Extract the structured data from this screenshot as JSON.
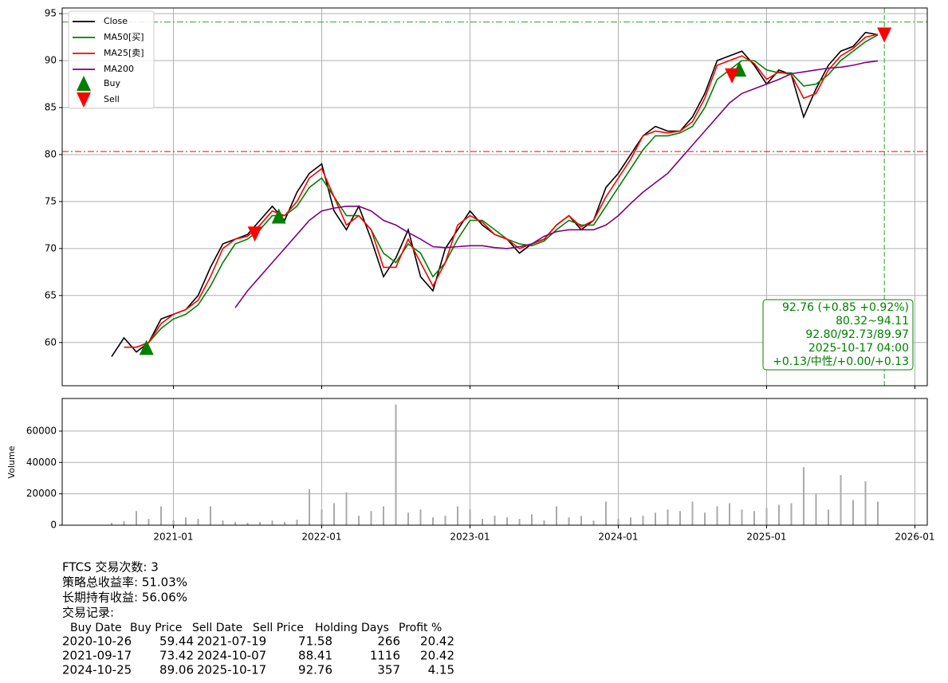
{
  "chart_data": [
    {
      "type": "line",
      "x": [
        "2020-08",
        "2020-09",
        "2020-10",
        "2020-11",
        "2020-12",
        "2021-01",
        "2021-02",
        "2021-03",
        "2021-04",
        "2021-05",
        "2021-06",
        "2021-07",
        "2021-08",
        "2021-09",
        "2021-10",
        "2021-11",
        "2021-12",
        "2022-01",
        "2022-02",
        "2022-03",
        "2022-04",
        "2022-05",
        "2022-06",
        "2022-07",
        "2022-08",
        "2022-09",
        "2022-10",
        "2022-11",
        "2022-12",
        "2023-01",
        "2023-02",
        "2023-03",
        "2023-04",
        "2023-05",
        "2023-06",
        "2023-07",
        "2023-08",
        "2023-09",
        "2023-10",
        "2023-11",
        "2023-12",
        "2024-01",
        "2024-02",
        "2024-03",
        "2024-04",
        "2024-05",
        "2024-06",
        "2024-07",
        "2024-08",
        "2024-09",
        "2024-10",
        "2024-11",
        "2024-12",
        "2025-01",
        "2025-02",
        "2025-03",
        "2025-04",
        "2025-05",
        "2025-06",
        "2025-07",
        "2025-08",
        "2025-09",
        "2025-10"
      ],
      "series": [
        {
          "name": "Close",
          "color": "#000000",
          "values": [
            58.5,
            60.5,
            59,
            60,
            62.5,
            63,
            63.5,
            65,
            68,
            70.5,
            71,
            71.5,
            73,
            74.5,
            73,
            76,
            78,
            79,
            74,
            72,
            74.5,
            71,
            67,
            69,
            72,
            67,
            65.5,
            70,
            72,
            74,
            72.5,
            71.5,
            71,
            69.5,
            70.5,
            71,
            72.5,
            73.5,
            72,
            73,
            76.5,
            78,
            80,
            82,
            83,
            82.5,
            82.5,
            84,
            86.5,
            90,
            90.5,
            91,
            89.5,
            87.5,
            89,
            88.5,
            84,
            87,
            89.5,
            91,
            91.5,
            93,
            92.76
          ]
        },
        {
          "name": "MA50[买]",
          "color": "#008000",
          "values": [
            null,
            null,
            59.5,
            60,
            61.5,
            62.5,
            63,
            64,
            66,
            68.5,
            70.5,
            71,
            72,
            73.5,
            73.5,
            74.5,
            76.5,
            77.5,
            75.5,
            73.5,
            73.5,
            72,
            69.5,
            68.5,
            70.5,
            69.5,
            67,
            68.5,
            71,
            73,
            73,
            72,
            71,
            70.5,
            70.3,
            70.8,
            72,
            73,
            72.5,
            72.5,
            74.5,
            76.5,
            78.5,
            80.5,
            82,
            82,
            82.3,
            83,
            85,
            88,
            89,
            90,
            90,
            89,
            88.7,
            88.7,
            87.3,
            87.5,
            88.5,
            90,
            91,
            92,
            92.73
          ]
        },
        {
          "name": "MA25[卖]",
          "color": "#ff0000",
          "values": [
            null,
            59.5,
            59.5,
            60,
            62,
            63,
            63.5,
            64.5,
            67,
            70,
            71,
            71.3,
            72.5,
            74,
            73.5,
            75,
            77.5,
            78.5,
            75.5,
            72.5,
            73.5,
            72,
            68,
            68,
            71,
            68.5,
            66,
            68.5,
            72.5,
            73.5,
            72.8,
            71.5,
            71,
            70,
            70.5,
            71,
            72.5,
            73.5,
            72.3,
            73,
            75.5,
            77.5,
            79.5,
            82,
            82.5,
            82.3,
            82.5,
            83.5,
            86,
            89.5,
            90,
            90.5,
            89.7,
            88,
            88.8,
            88.5,
            86,
            86.5,
            89,
            90.5,
            91.3,
            92.5,
            92.8
          ]
        },
        {
          "name": "MA200",
          "color": "#800080",
          "values": [
            null,
            null,
            null,
            null,
            null,
            null,
            null,
            null,
            null,
            null,
            63.7,
            65.5,
            67,
            68.5,
            70,
            71.5,
            73,
            74,
            74.3,
            74.5,
            74.5,
            74,
            73,
            72.5,
            71.7,
            71,
            70.2,
            70.1,
            70.2,
            70.3,
            70.3,
            70.1,
            70,
            70.2,
            70.5,
            71.3,
            71.8,
            72,
            72,
            72,
            72.5,
            73.5,
            74.8,
            76,
            77,
            78,
            79.5,
            81,
            82.5,
            84,
            85.5,
            86.5,
            87,
            87.5,
            88,
            88.6,
            88.8,
            89,
            89.2,
            89.3,
            89.5,
            89.8,
            89.97
          ]
        }
      ],
      "markers": [
        {
          "name": "Buy",
          "color": "#008000",
          "shape": "up",
          "date_col": 0,
          "price_col": 1
        },
        {
          "name": "Sell",
          "color": "#ff0000",
          "shape": "down",
          "date_col": 2,
          "price_col": 3
        }
      ],
      "hlines": [
        {
          "value": 94.11,
          "color": "#2ca02c"
        },
        {
          "value": 80.32,
          "color": "#ff0000"
        }
      ],
      "vline": {
        "value": "2025-10-17",
        "color": "#2ca02c"
      },
      "info_box": {
        "color": "#008000",
        "lines": [
          "92.76 (+0.85 +0.92%)",
          "80.32~94.11",
          "92.80/92.73/89.97",
          "2025-10-17 04:00",
          "+0.13/中性/+0.00/+0.13"
        ]
      },
      "xlim": [
        "2020-04",
        "2026-02"
      ],
      "ylim": [
        55.4,
        95.6
      ],
      "yticks": [
        60,
        65,
        70,
        75,
        80,
        85,
        90,
        95
      ],
      "grid": true,
      "legend": "upper left"
    },
    {
      "type": "bar",
      "ylabel": "Volume",
      "color": "#aaaaaa",
      "values": [
        1500,
        2500,
        9000,
        4000,
        12000,
        3000,
        5000,
        4000,
        12000,
        3000,
        2000,
        1500,
        2000,
        3000,
        2000,
        3500,
        23000,
        10000,
        14000,
        21000,
        6000,
        9000,
        12000,
        77000,
        8000,
        10000,
        5000,
        6000,
        12000,
        10000,
        4000,
        6000,
        5000,
        4000,
        7000,
        3000,
        12000,
        5000,
        6000,
        3000,
        15000,
        4000,
        5000,
        6000,
        8000,
        10000,
        9000,
        15000,
        8000,
        12000,
        14000,
        10000,
        9000,
        11000,
        13000,
        14000,
        37000,
        20000,
        10000,
        32000,
        16000,
        28000,
        15000
      ],
      "ylim": [
        0,
        80800
      ],
      "yticks": [
        0,
        20000,
        40000,
        60000
      ],
      "xticks": [
        "2021-01",
        "2022-01",
        "2023-01",
        "2024-01",
        "2025-01",
        "2026-01"
      ],
      "grid": true
    }
  ],
  "report": {
    "lines": [
      "FTCS 交易次数: 3",
      "策略总收益率: 51.03%",
      "长期持有收益: 56.06%",
      "交易记录:"
    ],
    "trades": {
      "columns": [
        "Buy Date",
        "Buy Price",
        "Sell Date",
        "Sell Price",
        "Holding Days",
        "Profit %"
      ],
      "rows": [
        [
          "2020-10-26",
          59.44,
          "2021-07-19",
          71.58,
          266,
          20.42
        ],
        [
          "2021-09-17",
          73.42,
          "2024-10-07",
          88.41,
          1116,
          20.42
        ],
        [
          "2024-10-25",
          89.06,
          "2025-10-17",
          92.76,
          357,
          4.15
        ]
      ]
    }
  }
}
